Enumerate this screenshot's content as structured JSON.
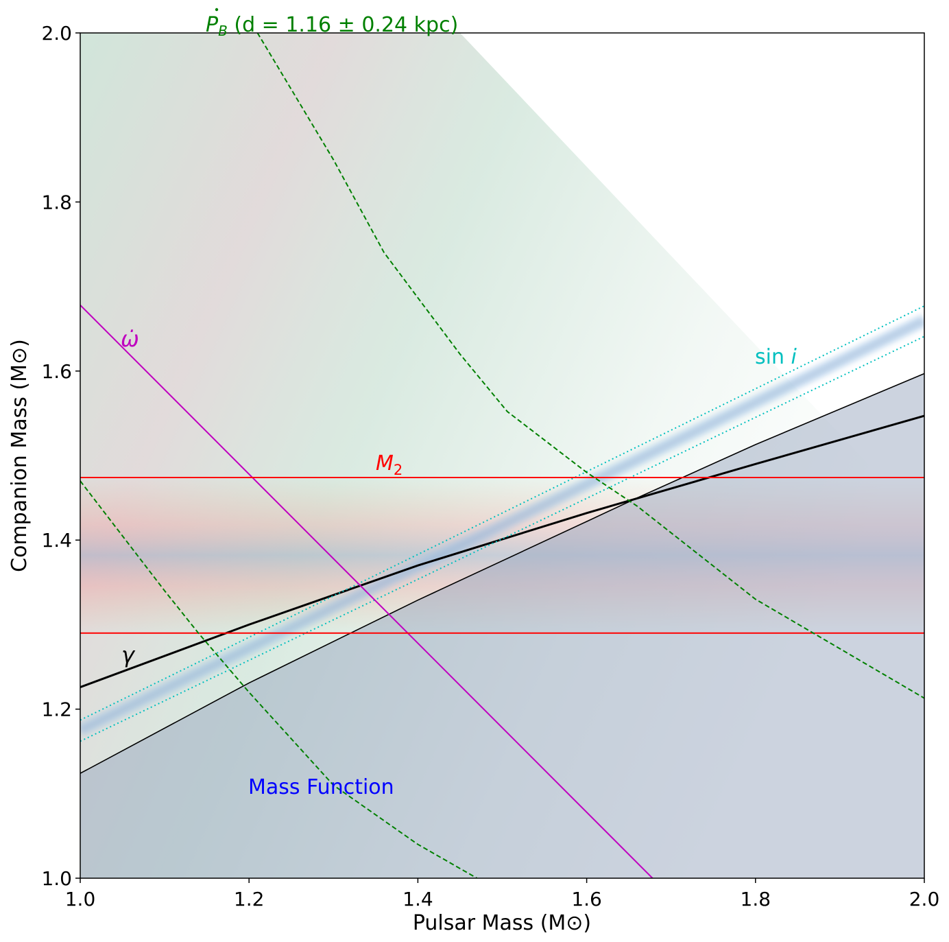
{
  "chart_data": {
    "type": "line",
    "xlabel": "Pulsar Mass (M⊙)",
    "ylabel": "Companion Mass (M⊙)",
    "xlim": [
      1.0,
      2.0
    ],
    "ylim": [
      1.0,
      2.0
    ],
    "xticks": [
      "1.0",
      "1.2",
      "1.4",
      "1.6",
      "1.8",
      "2.0"
    ],
    "yticks": [
      "1.0",
      "1.2",
      "1.4",
      "1.6",
      "1.8",
      "2.0"
    ],
    "grid": false,
    "series": [
      {
        "name": "Mass Function",
        "color": "#000000",
        "style": "solid-thin",
        "fill_below": "#cdd4e0",
        "x": [
          1.0,
          1.2,
          1.4,
          1.6,
          1.66,
          1.8,
          2.0
        ],
        "y": [
          1.124,
          1.231,
          1.329,
          1.422,
          1.45,
          1.513,
          1.597
        ]
      },
      {
        "name": "γ",
        "color": "#000000",
        "style": "solid-thick",
        "x": [
          1.0,
          1.2,
          1.4,
          1.6,
          1.8,
          2.0
        ],
        "y": [
          1.226,
          1.3,
          1.37,
          1.432,
          1.49,
          1.547
        ]
      },
      {
        "name": "sin i",
        "color": "#00bfbf",
        "style": "dotted-pair",
        "x": [
          1.0,
          2.0
        ],
        "y_center": [
          1.175,
          1.66
        ],
        "y_upper": [
          1.187,
          1.677
        ],
        "y_lower": [
          1.162,
          1.641
        ]
      },
      {
        "name": "ω̇",
        "color": "#bf00bf",
        "style": "solid",
        "x": [
          1.0,
          1.678
        ],
        "y": [
          1.678,
          1.0
        ]
      },
      {
        "name": "M2",
        "color": "#ff0000",
        "style": "hlines",
        "y_upper": 1.474,
        "y_lower": 1.29,
        "y_center": 1.38
      },
      {
        "name": "Ṗ_B (d = 1.16 ± 0.24 kpc)",
        "color": "#008000",
        "style": "dashed-pair",
        "upper": {
          "x": [
            1.21,
            1.3,
            1.36,
            1.45,
            1.506,
            1.6,
            1.66,
            1.8,
            2.0
          ],
          "y": [
            2.0,
            1.85,
            1.74,
            1.62,
            1.552,
            1.48,
            1.44,
            1.33,
            1.213
          ]
        },
        "lower": {
          "x": [
            1.0,
            1.1,
            1.14,
            1.2,
            1.3,
            1.4,
            1.47
          ],
          "y": [
            1.47,
            1.34,
            1.29,
            1.22,
            1.11,
            1.04,
            1.0
          ]
        }
      }
    ],
    "annotations": {
      "pb": {
        "text_main": "P",
        "text_sub": "B",
        "text_rest": " (d = 1.16 ± 0.24 kpc)",
        "color": "#008000"
      },
      "omdot": {
        "text": "ω̇",
        "x": 1.05,
        "y": 1.63,
        "color": "#bf00bf"
      },
      "sini": {
        "text_a": "sin ",
        "text_b": "i",
        "x": 1.8,
        "y": 1.61,
        "color": "#00bfbf"
      },
      "m2": {
        "text_a": "M",
        "text_b": "2",
        "x": 1.35,
        "y": 1.48,
        "color": "#ff0000"
      },
      "gamma": {
        "text": "γ",
        "x": 1.05,
        "y": 1.25,
        "color": "#000000"
      },
      "massfn": {
        "text": "Mass Function",
        "x": 1.2,
        "y": 1.1,
        "color": "#0000ff"
      }
    }
  }
}
